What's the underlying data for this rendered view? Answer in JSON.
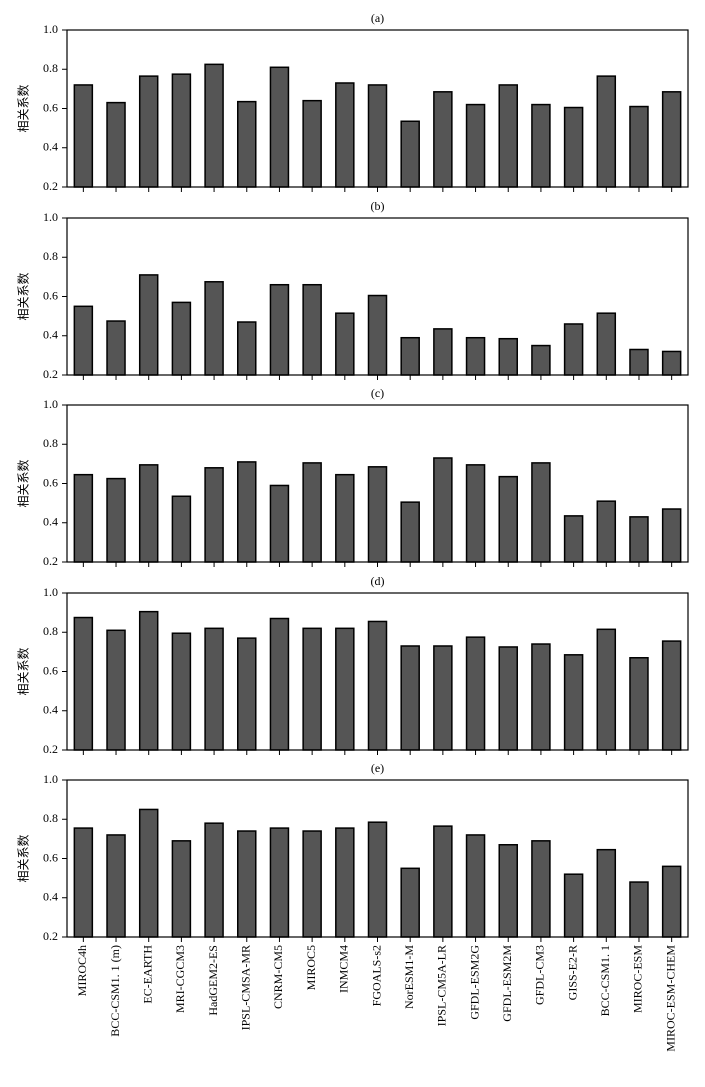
{
  "chart_data": [
    {
      "type": "bar",
      "title": "(a)",
      "y_label": "相关系数",
      "color": "#555555",
      "ylim": [
        0.2,
        1
      ],
      "yticks": [
        0.2,
        0.4,
        0.6,
        0.8,
        {
          "value": 1,
          "label": "1.0"
        }
      ],
      "values": [
        0.72,
        0.63,
        0.765,
        0.775,
        0.825,
        0.635,
        0.81,
        0.64,
        0.73,
        0.72,
        0.535,
        0.685,
        0.62,
        0.72,
        0.62,
        0.605,
        0.765,
        0.61,
        0.685
      ]
    },
    {
      "type": "bar",
      "title": "(b)",
      "y_label": "相关系数",
      "color": "#555555",
      "ylim": [
        0.2,
        1
      ],
      "yticks": [
        0.2,
        0.4,
        0.6,
        0.8,
        {
          "value": 1,
          "label": "1.0"
        }
      ],
      "values": [
        0.55,
        0.475,
        0.71,
        0.57,
        0.675,
        0.47,
        0.66,
        0.66,
        0.515,
        0.605,
        0.39,
        0.435,
        0.39,
        0.385,
        0.35,
        0.46,
        0.515,
        0.33,
        0.32
      ]
    },
    {
      "type": "bar",
      "title": "(c)",
      "y_label": "相关系数",
      "color": "#555555",
      "ylim": [
        0.2,
        1
      ],
      "yticks": [
        0.2,
        0.4,
        0.6,
        0.8,
        {
          "value": 1,
          "label": "1.0"
        }
      ],
      "values": [
        0.645,
        0.625,
        0.695,
        0.535,
        0.68,
        0.71,
        0.59,
        0.705,
        0.645,
        0.685,
        0.505,
        0.73,
        0.695,
        0.635,
        0.705,
        0.435,
        0.51,
        0.43,
        0.47
      ]
    },
    {
      "type": "bar",
      "title": "(d)",
      "y_label": "相关系数",
      "color": "#555555",
      "ylim": [
        0.2,
        1
      ],
      "yticks": [
        0.2,
        0.4,
        0.6,
        0.8,
        {
          "value": 1,
          "label": "1.0"
        }
      ],
      "values": [
        0.875,
        0.81,
        0.905,
        0.795,
        0.82,
        0.77,
        0.87,
        0.82,
        0.82,
        0.855,
        0.73,
        0.73,
        0.775,
        0.725,
        0.74,
        0.685,
        0.815,
        0.67,
        0.755
      ]
    },
    {
      "type": "bar",
      "title": "(e)",
      "y_label": "相关系数",
      "color": "#555555",
      "ylim": [
        0.2,
        1
      ],
      "yticks": [
        0.2,
        0.4,
        0.6,
        0.8,
        {
          "value": 1,
          "label": "1.0"
        }
      ],
      "categories": [
        "MIROC4h",
        "BCC-CSM1. 1 (m)",
        "EC-EARTH",
        "MRI-CGCM3",
        "HadGEM2-ES",
        "IPSL-CMSA-MR",
        "CNRM-CM5",
        "MIROC5",
        "INMCM4",
        "FGOALS-s2",
        "NorESM1-M",
        "IPSL-CM5A-LR",
        "GFDL-ESM2G",
        "GFDL-ESM2M",
        "GFDL-CM3",
        "GISS-E2-R",
        "BCC-CSM1. 1",
        "MIROC-ESM",
        "MIROC-ESM-CHEM"
      ],
      "values": [
        0.755,
        0.72,
        0.85,
        0.69,
        0.78,
        0.74,
        0.755,
        0.74,
        0.755,
        0.785,
        0.55,
        0.765,
        0.72,
        0.67,
        0.69,
        0.52,
        0.645,
        0.48,
        0.56
      ]
    }
  ]
}
